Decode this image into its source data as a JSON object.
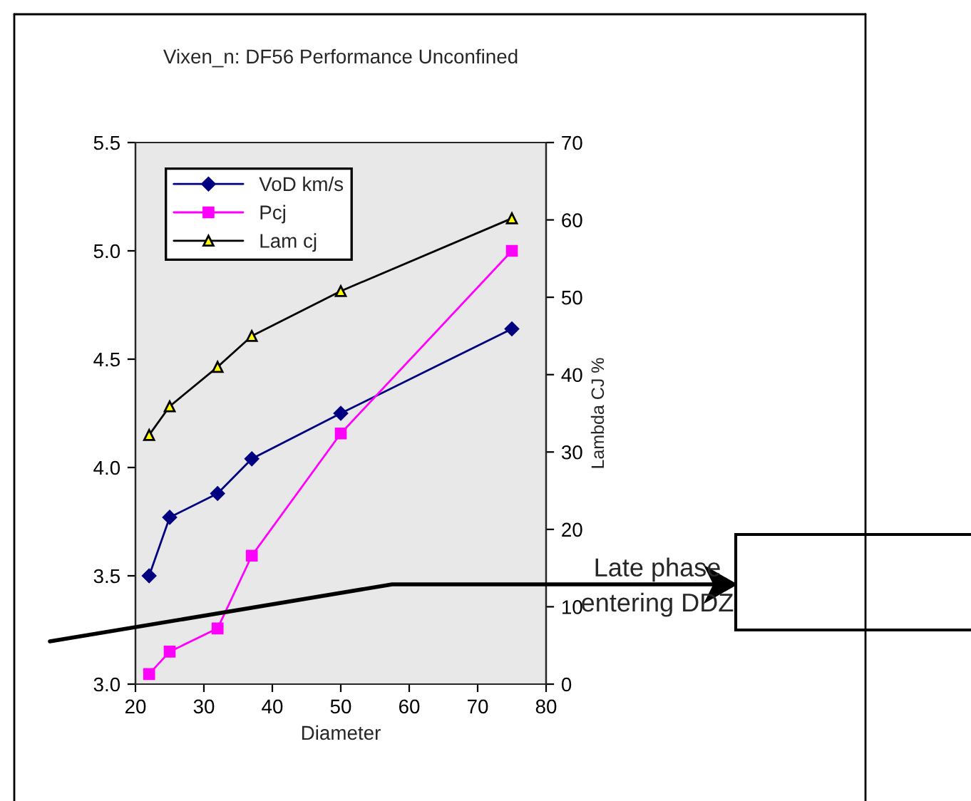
{
  "chart_data": {
    "type": "line",
    "title": "Vixen_n: DF56 Performance Unconfined",
    "xlabel": "Diameter",
    "y2label": "Lambda CJ %",
    "x": [
      22,
      25,
      32,
      37,
      50,
      75
    ],
    "series": [
      {
        "name": "VoD km/s",
        "color": "#000080",
        "marker": "diamond",
        "values": [
          3.5,
          3.77,
          3.88,
          4.04,
          4.25,
          4.64
        ]
      },
      {
        "name": "Pcj",
        "color": "#ff00ff",
        "marker": "square",
        "axis": "y2",
        "values": [
          1.3,
          4.2,
          7.2,
          16.6,
          32.4,
          56
        ]
      },
      {
        "name": "Lam cj",
        "color": "#000000",
        "marker": "triangle",
        "axis": "y2",
        "values": [
          32.2,
          35.9,
          41,
          45,
          50.8,
          60.2
        ]
      }
    ],
    "xlim": [
      20,
      80
    ],
    "xticks": [
      20,
      30,
      40,
      50,
      60,
      70,
      80
    ],
    "ylim": [
      3.0,
      5.5
    ],
    "yticks": [
      {
        "value": 3.0,
        "label": "3.0"
      },
      {
        "value": 3.5,
        "label": "3.5"
      },
      {
        "value": 4.0,
        "label": "4.0"
      },
      {
        "value": 4.5,
        "label": "4.5"
      },
      {
        "value": 5.0,
        "label": "5.0"
      },
      {
        "value": 5.5,
        "label": "5.5"
      }
    ],
    "y2lim": [
      0,
      70
    ],
    "y2ticks": [
      0,
      10,
      20,
      30,
      40,
      50,
      60,
      70
    ],
    "grid": false,
    "legend": "top left",
    "annotations": [
      "Late phase\nentering DDZ"
    ]
  }
}
